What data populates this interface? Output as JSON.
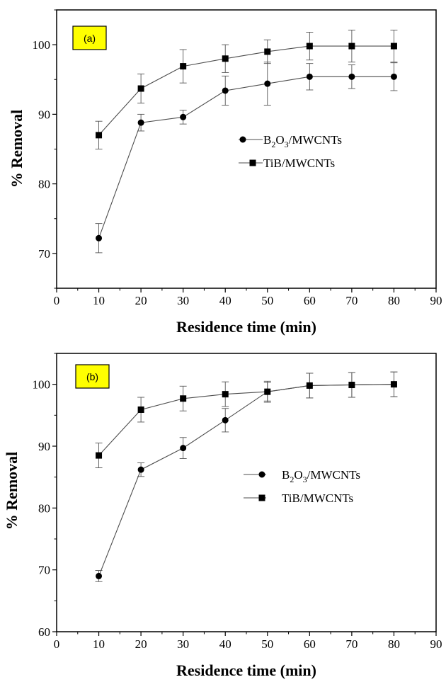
{
  "chart_data": [
    {
      "type": "line",
      "panel_label": "(a)",
      "xlabel": "Residence time (min)",
      "ylabel": "% Removal",
      "xlim": [
        0,
        90
      ],
      "ylim": [
        65,
        105
      ],
      "xticks": [
        "0",
        "10",
        "20",
        "30",
        "40",
        "50",
        "60",
        "70",
        "80",
        "90"
      ],
      "yticks": [
        "70",
        "80",
        "90",
        "100"
      ],
      "legend_position": "middle-right",
      "grid": false,
      "series": [
        {
          "name": "B2O3/MWCNTs",
          "marker": "circle",
          "x": [
            10,
            20,
            30,
            40,
            50,
            60,
            70,
            80
          ],
          "y": [
            72.2,
            88.8,
            89.6,
            93.4,
            94.4,
            95.4,
            95.4,
            95.4
          ],
          "error": [
            2.1,
            1.2,
            1.0,
            2.1,
            3.1,
            1.9,
            1.7,
            2.0
          ]
        },
        {
          "name": "TiB/MWCNTs",
          "marker": "square",
          "x": [
            10,
            20,
            30,
            40,
            50,
            60,
            70,
            80
          ],
          "y": [
            87.0,
            93.7,
            96.9,
            98.0,
            99.0,
            99.8,
            99.8,
            99.8
          ],
          "error": [
            2.0,
            2.1,
            2.4,
            2.0,
            1.7,
            2.0,
            2.3,
            2.3
          ]
        }
      ]
    },
    {
      "type": "line",
      "panel_label": "(b)",
      "xlabel": "Residence time (min)",
      "ylabel": "% Removal",
      "xlim": [
        0,
        90
      ],
      "ylim": [
        60,
        105
      ],
      "xticks": [
        "0",
        "10",
        "20",
        "30",
        "40",
        "50",
        "60",
        "70",
        "80",
        "90"
      ],
      "yticks": [
        "60",
        "70",
        "80",
        "90",
        "100"
      ],
      "legend_position": "middle-right",
      "grid": false,
      "series": [
        {
          "name": "B2O3/MWCNTs",
          "marker": "circle",
          "x": [
            10,
            20,
            30,
            40,
            50,
            60,
            70,
            80
          ],
          "y": [
            69.0,
            86.2,
            89.7,
            94.2,
            98.8,
            99.8,
            99.9,
            100.0
          ],
          "error": [
            0.9,
            1.1,
            1.7,
            1.9,
            1.7,
            2.0,
            2.0,
            2.0
          ]
        },
        {
          "name": "TiB/MWCNTs",
          "marker": "square",
          "x": [
            10,
            20,
            30,
            40,
            50,
            60,
            70,
            80
          ],
          "y": [
            88.5,
            95.9,
            97.7,
            98.4,
            98.8,
            99.8,
            99.9,
            100.0
          ],
          "error": [
            2.0,
            2.0,
            2.0,
            2.0,
            1.5,
            2.0,
            2.0,
            2.0
          ]
        }
      ]
    }
  ],
  "legend_labels": {
    "b2o3": {
      "pre": "B",
      "sub1": "2",
      "mid": "O",
      "sub2": "3",
      "post": "/MWCNTs"
    },
    "tib": "TiB/MWCNTs"
  },
  "colors": {
    "series_line": "#4d4d4d",
    "marker": "#000000",
    "panel_tag_fill": "#ffff00"
  }
}
